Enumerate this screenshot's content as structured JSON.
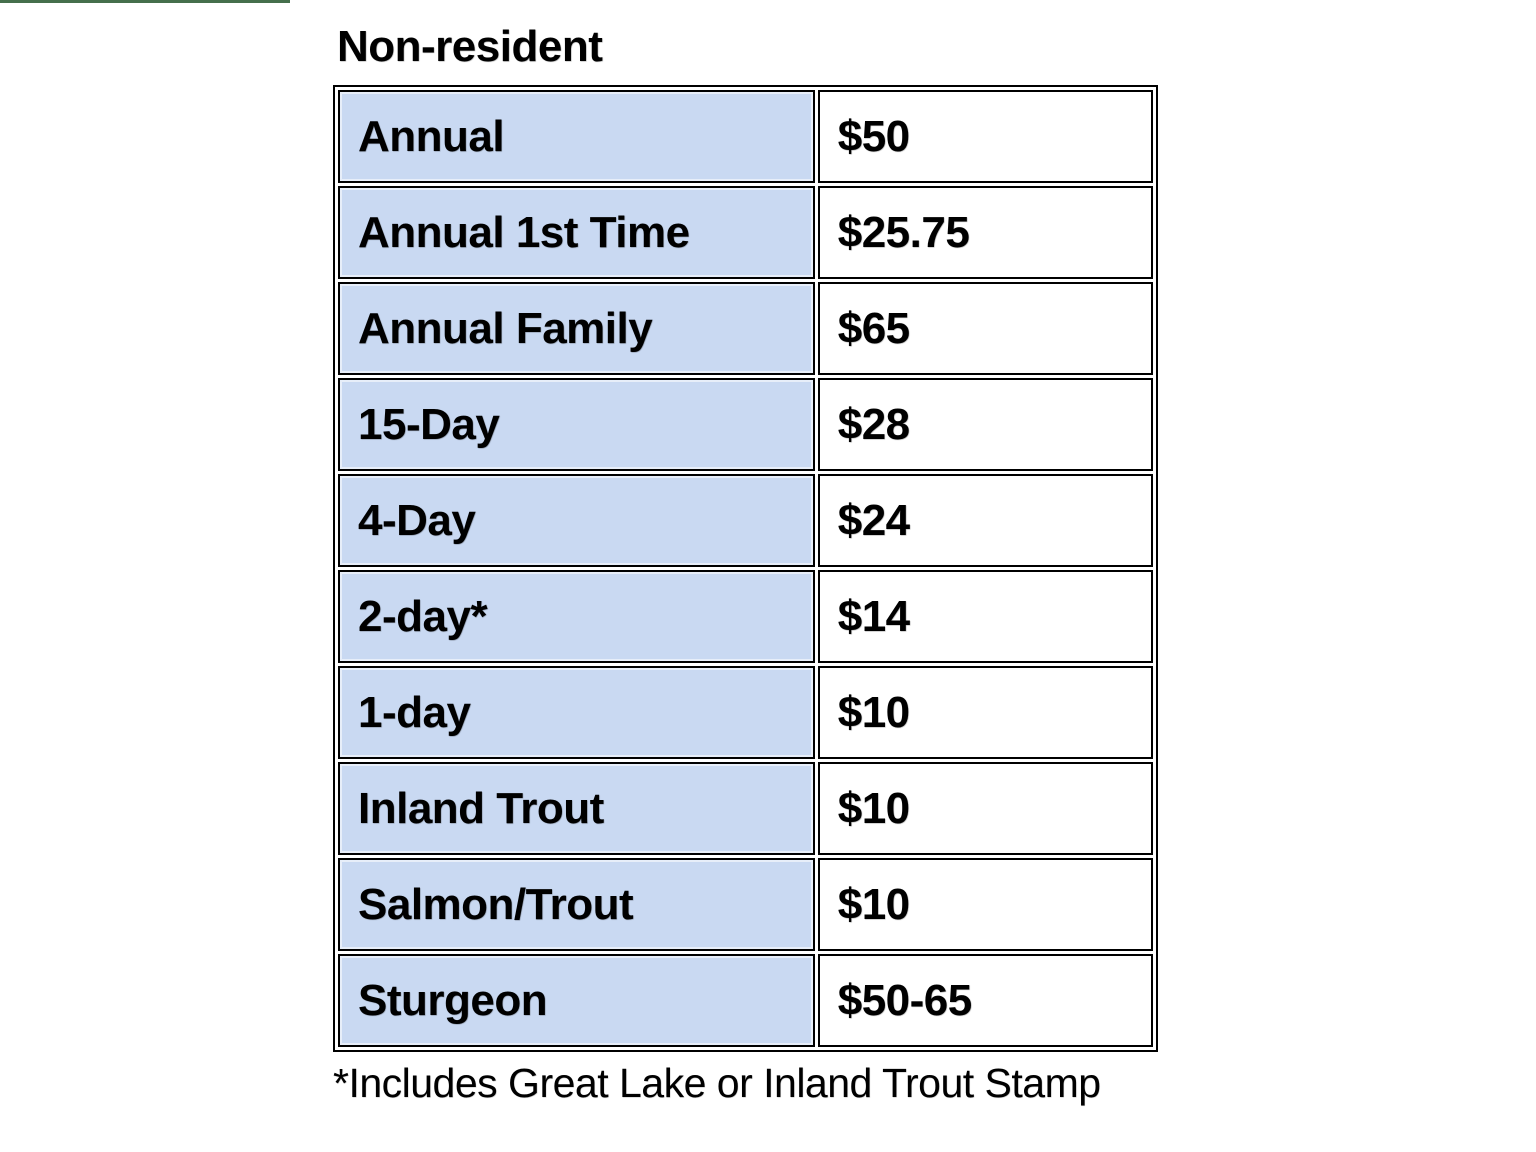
{
  "decorations": {
    "top_bar_color": "#456f4c"
  },
  "section": {
    "title": "Non-resident"
  },
  "table": {
    "label_column_bg": "#c9d9f2",
    "border_color": "#000000",
    "rows": [
      {
        "label": "Annual",
        "price": "$50"
      },
      {
        "label": "Annual 1st Time",
        "price": "$25.75"
      },
      {
        "label": "Annual Family",
        "price": "$65"
      },
      {
        "label": "15-Day",
        "price": "$28"
      },
      {
        "label": "4-Day",
        "price": "$24"
      },
      {
        "label": "2-day*",
        "price": "$14"
      },
      {
        "label": "1-day",
        "price": "$10"
      },
      {
        "label": "Inland Trout",
        "price": "$10"
      },
      {
        "label": "Salmon/Trout",
        "price": "$10"
      },
      {
        "label": "Sturgeon",
        "price": "$50-65"
      }
    ]
  },
  "footnote": "*Includes Great Lake or Inland Trout Stamp"
}
